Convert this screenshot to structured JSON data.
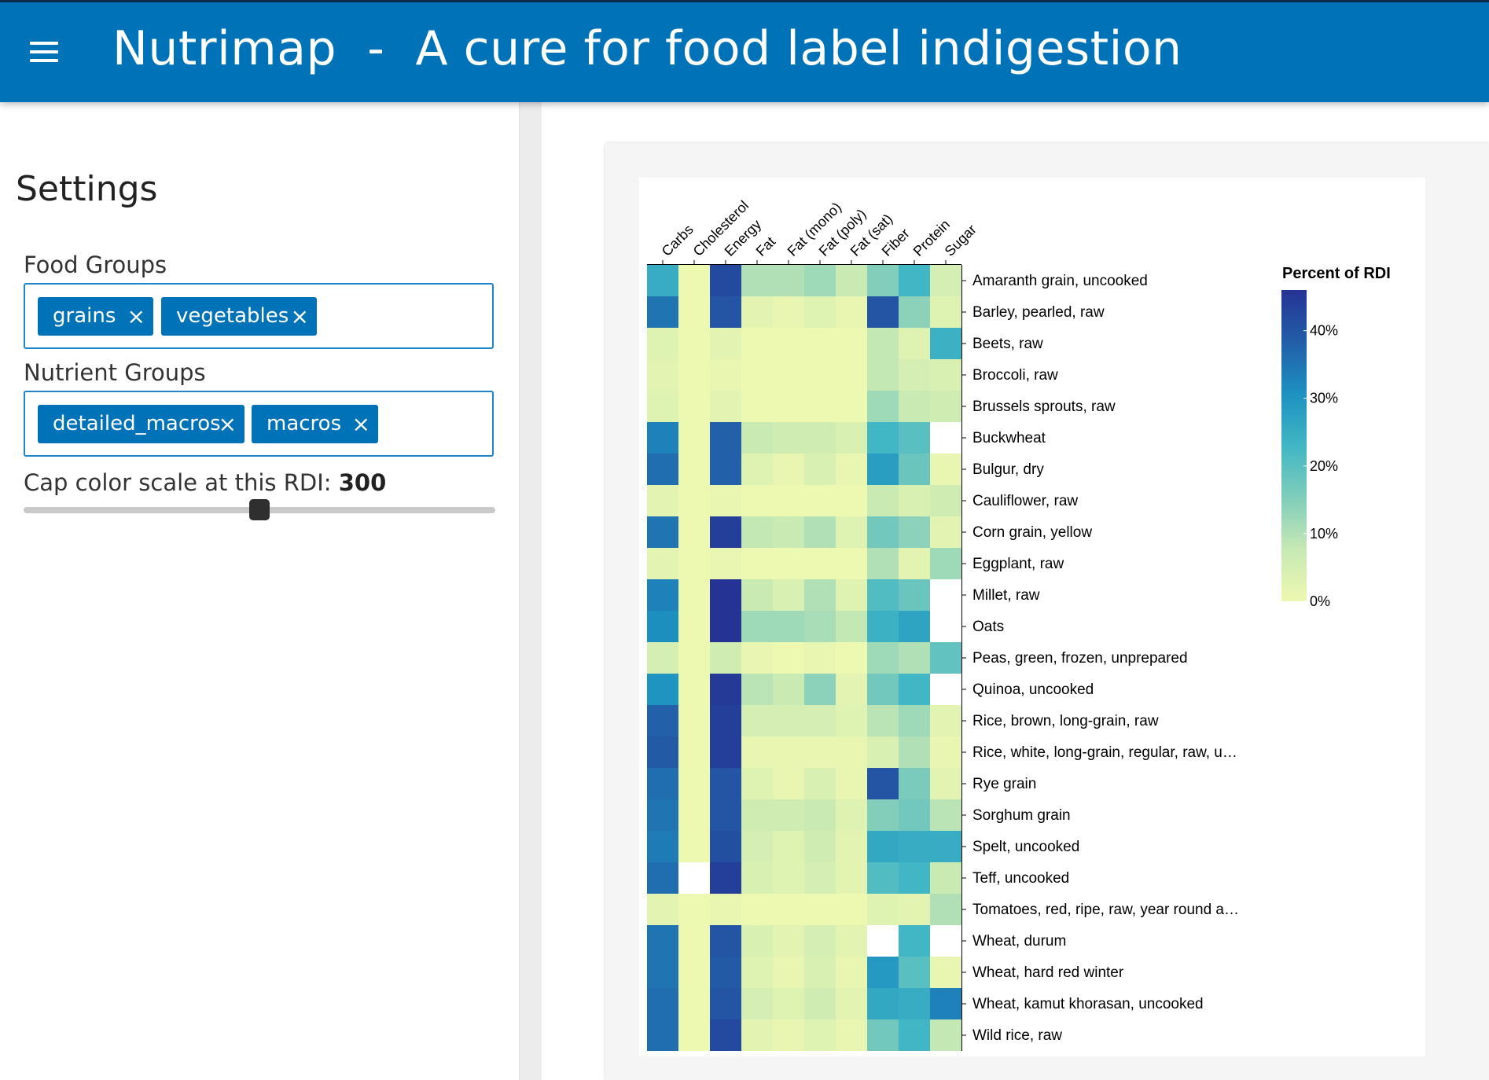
{
  "header": {
    "menu_icon": "hamburger-menu-icon",
    "title": "Nutrimap  -  A cure for food label indigestion"
  },
  "sidebar": {
    "title": "Settings",
    "food_groups": {
      "label": "Food Groups",
      "tags": [
        "grains",
        "vegetables"
      ],
      "remove_icon": "×"
    },
    "nutrient_groups": {
      "label": "Nutrient Groups",
      "tags": [
        "detailed_macros",
        "macros"
      ],
      "remove_icon": "×"
    },
    "cap": {
      "label": "Cap color scale at this RDI:",
      "value": "300",
      "slider_fraction": 0.5
    }
  },
  "colors": {
    "header_bg": "#0072b8",
    "tag_bg": "#0072b8",
    "scale": [
      "#edf8b1",
      "#c7e9b4",
      "#7fcdbb",
      "#41b6c4",
      "#1d91c0",
      "#225ea8",
      "#253494"
    ]
  },
  "chart_data": {
    "type": "heatmap",
    "x": [
      "Carbs",
      "Cholesterol",
      "Energy",
      "Fat",
      "Fat (mono)",
      "Fat (poly)",
      "Fat (sat)",
      "Fiber",
      "Protein",
      "Sugar"
    ],
    "y": [
      "Amaranth grain, uncooked",
      "Barley, pearled, raw",
      "Beets, raw",
      "Broccoli, raw",
      "Brussels sprouts, raw",
      "Buckwheat",
      "Bulgur, dry",
      "Cauliflower, raw",
      "Corn grain, yellow",
      "Eggplant, raw",
      "Millet, raw",
      "Oats",
      "Peas, green, frozen, unprepared",
      "Quinoa, uncooked",
      "Rice, brown, long-grain, raw",
      "Rice, white, long-grain, regular, raw, u…",
      "Rye grain",
      "Sorghum grain",
      "Spelt, uncooked",
      "Teff, uncooked",
      "Tomatoes, red, ripe, raw, year round a…",
      "Wheat, durum",
      "Wheat, hard red winter",
      "Wheat, kamut khorasan, uncooked",
      "Wild rice, raw"
    ],
    "values": [
      [
        25,
        0,
        42,
        10,
        10,
        12,
        7,
        15,
        23,
        5
      ],
      [
        35,
        0,
        40,
        2,
        1,
        3,
        1,
        40,
        14,
        3
      ],
      [
        3,
        0,
        2,
        0,
        0,
        0,
        0,
        8,
        3,
        24
      ],
      [
        2,
        0,
        1,
        0,
        0,
        0,
        0,
        8,
        5,
        4
      ],
      [
        3,
        0,
        2,
        0,
        0,
        0,
        0,
        12,
        7,
        6
      ],
      [
        33,
        0,
        38,
        7,
        6,
        6,
        4,
        23,
        20,
        null
      ],
      [
        36,
        0,
        38,
        3,
        1,
        4,
        1,
        28,
        18,
        1
      ],
      [
        2,
        0,
        1,
        0,
        0,
        0,
        0,
        7,
        4,
        6
      ],
      [
        35,
        0,
        44,
        8,
        7,
        10,
        3,
        17,
        14,
        2
      ],
      [
        2,
        0,
        1,
        0,
        0,
        0,
        0,
        10,
        2,
        12
      ],
      [
        33,
        0,
        46,
        7,
        4,
        10,
        3,
        21,
        18,
        null
      ],
      [
        31,
        0,
        47,
        12,
        12,
        11,
        8,
        24,
        27,
        null
      ],
      [
        5,
        0,
        6,
        1,
        0,
        1,
        0,
        12,
        10,
        19
      ],
      [
        30,
        0,
        45,
        9,
        7,
        14,
        2,
        17,
        23,
        null
      ],
      [
        38,
        0,
        44,
        5,
        5,
        5,
        3,
        9,
        12,
        2
      ],
      [
        39,
        0,
        44,
        1,
        1,
        1,
        1,
        4,
        10,
        1
      ],
      [
        36,
        0,
        40,
        3,
        1,
        4,
        1,
        40,
        16,
        2
      ],
      [
        35,
        0,
        40,
        6,
        6,
        7,
        3,
        15,
        17,
        9
      ],
      [
        34,
        0,
        41,
        5,
        3,
        6,
        2,
        26,
        25,
        25
      ],
      [
        36,
        null,
        44,
        4,
        3,
        5,
        2,
        21,
        23,
        7
      ],
      [
        2,
        0,
        1,
        0,
        0,
        0,
        0,
        3,
        2,
        10
      ],
      [
        35,
        0,
        40,
        4,
        2,
        5,
        2,
        null,
        23,
        null
      ],
      [
        35,
        0,
        39,
        3,
        1,
        4,
        1,
        29,
        20,
        1
      ],
      [
        36,
        0,
        40,
        5,
        3,
        6,
        2,
        26,
        25,
        33
      ],
      [
        36,
        0,
        42,
        2,
        1,
        3,
        1,
        17,
        23,
        8
      ]
    ],
    "legend": {
      "title": "Percent of RDI",
      "ticks": [
        "40%",
        "30%",
        "20%",
        "10%",
        "0%"
      ],
      "tick_values": [
        40,
        30,
        20,
        10,
        0
      ],
      "domain": [
        0,
        46
      ]
    }
  }
}
